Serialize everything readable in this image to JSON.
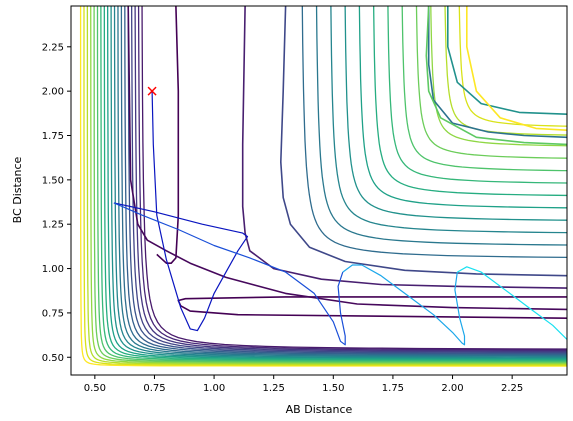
{
  "chart_data": {
    "type": "contour",
    "xlabel": "AB Distance",
    "ylabel": "BC Distance",
    "xlim": [
      0.4,
      2.48
    ],
    "ylim": [
      0.4,
      2.48
    ],
    "xticks": [
      0.5,
      0.75,
      1.0,
      1.25,
      1.5,
      1.75,
      2.0,
      2.25
    ],
    "xtick_labels": [
      "0.50",
      "0.75",
      "1.00",
      "1.25",
      "1.50",
      "1.75",
      "2.00",
      "2.25"
    ],
    "yticks": [
      0.5,
      0.75,
      1.0,
      1.25,
      1.5,
      1.75,
      2.0,
      2.25
    ],
    "ytick_labels": [
      "0.50",
      "0.75",
      "1.00",
      "1.25",
      "1.50",
      "1.75",
      "2.00",
      "2.25"
    ],
    "colormap": "viridis",
    "contour_lines": [
      {
        "color": "#440154",
        "x": [
          0.76,
          0.8,
          0.82,
          0.84,
          0.85,
          0.85,
          0.84
        ],
        "y": [
          1.08,
          1.03,
          1.03,
          1.06,
          1.3,
          2.0,
          2.48
        ]
      },
      {
        "color": "#440154",
        "x": [
          2.48,
          1.3,
          0.88,
          0.85,
          0.86,
          0.9,
          1.1,
          2.48
        ],
        "y": [
          0.84,
          0.84,
          0.83,
          0.82,
          0.79,
          0.76,
          0.74,
          0.72
        ]
      },
      {
        "color": "#46085c",
        "x": [
          0.64,
          0.65,
          0.68,
          0.72,
          0.8,
          0.9,
          1.05,
          1.3,
          1.6,
          2.0,
          2.48
        ],
        "y": [
          2.48,
          1.5,
          1.25,
          1.16,
          1.1,
          1.03,
          0.95,
          0.86,
          0.8,
          0.78,
          0.77
        ]
      },
      {
        "color": "#481f70",
        "x": [
          1.13,
          1.12,
          1.12,
          1.13,
          1.15,
          1.25,
          1.45,
          1.7,
          2.0,
          2.48
        ],
        "y": [
          2.48,
          1.7,
          1.35,
          1.2,
          1.1,
          1.0,
          0.94,
          0.91,
          0.9,
          0.89
        ]
      },
      {
        "color": "#3f4889",
        "x": [
          1.3,
          1.29,
          1.28,
          1.29,
          1.32,
          1.4,
          1.55,
          1.8,
          2.1,
          2.48
        ],
        "y": [
          2.48,
          2.0,
          1.6,
          1.4,
          1.25,
          1.12,
          1.04,
          0.99,
          0.97,
          0.96
        ]
      },
      {
        "color": "#2c728e",
        "x": [
          1.9,
          1.9,
          1.92,
          2.0,
          2.15,
          2.3,
          2.48
        ],
        "y": [
          2.48,
          2.15,
          1.95,
          1.82,
          1.77,
          1.75,
          1.74
        ]
      },
      {
        "color": "#21918c",
        "x": [
          1.98,
          1.98,
          2.02,
          2.12,
          2.28,
          2.48
        ],
        "y": [
          2.48,
          2.25,
          2.05,
          1.93,
          1.88,
          1.87
        ]
      },
      {
        "color": "#5ec962",
        "x": [
          1.9,
          1.89,
          1.9,
          1.95,
          2.1,
          2.3,
          2.48
        ],
        "y": [
          2.48,
          2.2,
          2.0,
          1.85,
          1.74,
          1.71,
          1.7
        ]
      },
      {
        "color": "#fde725",
        "x": [
          2.06,
          2.06,
          2.1,
          2.2,
          2.35,
          2.48
        ],
        "y": [
          2.48,
          2.25,
          2.0,
          1.85,
          1.79,
          1.78
        ]
      }
    ],
    "trajectory": {
      "start_marker": {
        "x": 0.74,
        "y": 2.0,
        "symbol": "x",
        "color": "#ff0000"
      }
    }
  }
}
